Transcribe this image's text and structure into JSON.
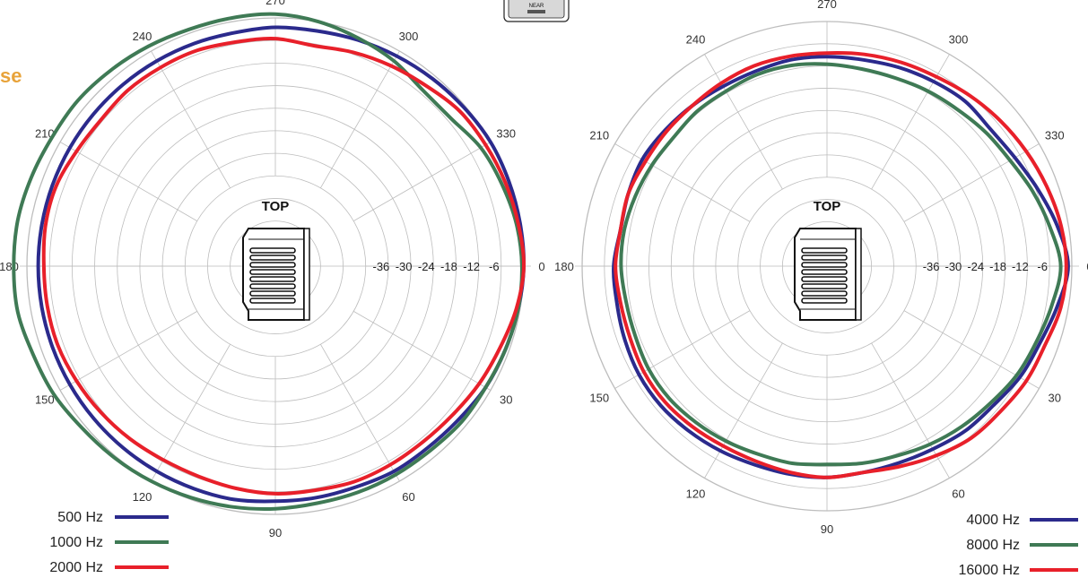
{
  "heading": {
    "text": "se",
    "color": "#e8a33a"
  },
  "logo_mark": "NEAR",
  "chart_data": [
    {
      "type": "polar-line",
      "center_label": "TOP",
      "angle_ticks": [
        "0",
        "30",
        "60",
        "90",
        "120",
        "150",
        "180",
        "210",
        "240",
        "270",
        "300",
        "330"
      ],
      "radial_ticks": [
        -36,
        -30,
        -24,
        -18,
        -12,
        -6
      ],
      "rlim": [
        -42,
        0
      ],
      "grid": true,
      "legend_position": "bottom-left",
      "series": [
        {
          "name": "500 Hz",
          "color": "#2b2a8c",
          "values": [
            0,
            -0.5,
            -1,
            -1.5,
            -2.5,
            -3,
            -3,
            -3.5,
            -3.5,
            -3.5,
            -3,
            -3,
            -3,
            -3,
            -3,
            -3,
            -3,
            -3,
            -3,
            -3,
            -3,
            -3,
            -3,
            -3,
            -3,
            -3,
            -3,
            -2.5,
            -2.5,
            -2,
            -1.5,
            -1,
            -0.5,
            0,
            0,
            0
          ]
        },
        {
          "name": "1000 Hz",
          "color": "#3f7a55",
          "values": [
            -0.5,
            -0.5,
            -1,
            -1.5,
            -1.5,
            -2,
            -2,
            -2,
            -2,
            -1.5,
            -1,
            -0.5,
            0,
            0.5,
            1,
            2,
            2.5,
            3.5,
            3.5,
            3.5,
            3,
            2.5,
            2.5,
            2,
            1.5,
            1,
            1,
            1,
            0,
            -1.5,
            -3,
            -5,
            -5,
            -3,
            -2,
            -1
          ]
        },
        {
          "name": "2000 Hz",
          "color": "#e8202a",
          "values": [
            0,
            -1,
            -2.5,
            -3.5,
            -4.5,
            -5,
            -5,
            -5,
            -5.5,
            -5.5,
            -6,
            -6.5,
            -6.5,
            -6,
            -5.5,
            -5,
            -4.5,
            -4.5,
            -4.5,
            -4,
            -4,
            -5,
            -5.5,
            -5,
            -5,
            -5,
            -5.5,
            -5.5,
            -6.5,
            -5.5,
            -4.5,
            -3.5,
            -2,
            -1.5,
            -1,
            -0.5
          ]
        }
      ]
    },
    {
      "type": "polar-line",
      "center_label": "TOP",
      "angle_ticks": [
        "0",
        "30",
        "60",
        "90",
        "120",
        "150",
        "180",
        "210",
        "240",
        "270",
        "300",
        "330"
      ],
      "radial_ticks": [
        -36,
        -30,
        -24,
        -18,
        -12,
        -6
      ],
      "rlim": [
        -42,
        0
      ],
      "grid": true,
      "legend_position": "bottom-right",
      "series": [
        {
          "name": "4000 Hz",
          "color": "#2b2a8c",
          "values": [
            -1,
            -3,
            -5,
            -6,
            -7.5,
            -8,
            -9,
            -9.5,
            -9.5,
            -9,
            -9,
            -9,
            -8.5,
            -8,
            -7.5,
            -7.5,
            -8,
            -8.5,
            -8.5,
            -9.5,
            -9,
            -8.5,
            -9,
            -9.5,
            -10,
            -10,
            -9.5,
            -9.5,
            -9.5,
            -9,
            -8.5,
            -8,
            -8.5,
            -7.5,
            -5.5,
            -3
          ]
        },
        {
          "name": "8000 Hz",
          "color": "#3f7a55",
          "values": [
            -3,
            -4.5,
            -6,
            -7,
            -8.5,
            -9.5,
            -10.5,
            -11.5,
            -12,
            -12.5,
            -12,
            -12,
            -11.5,
            -11,
            -10.5,
            -10.5,
            -11,
            -11,
            -10.5,
            -10.5,
            -11,
            -11.5,
            -12,
            -11.5,
            -11.5,
            -11,
            -11,
            -11.5,
            -12,
            -12,
            -11.5,
            -11,
            -10,
            -9,
            -7,
            -5
          ]
        },
        {
          "name": "16000 Hz",
          "color": "#e8202a",
          "values": [
            -1.5,
            -2,
            -3.5,
            -4,
            -5,
            -5.5,
            -7,
            -8.5,
            -9.5,
            -9,
            -9.5,
            -10,
            -10,
            -9.5,
            -9,
            -9,
            -9.5,
            -9.5,
            -9,
            -9.5,
            -9,
            -9.5,
            -9.5,
            -9.5,
            -9,
            -8.5,
            -8.5,
            -8.5,
            -8,
            -7.5,
            -7,
            -6,
            -5,
            -4,
            -3,
            -2
          ]
        }
      ]
    }
  ]
}
